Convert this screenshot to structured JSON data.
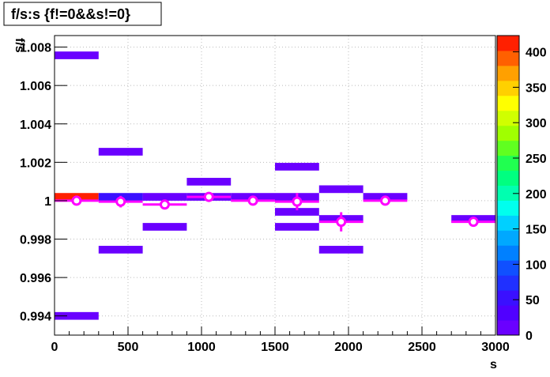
{
  "chart_data": {
    "type": "colz",
    "title": "f/s:s {f!=0&&s!=0}",
    "xlabel": "s",
    "ylabel": "f/s",
    "xlim": [
      0,
      3000
    ],
    "ylim": [
      0.993,
      1.0086
    ],
    "zlim": [
      0,
      423
    ],
    "xticks": [
      0,
      500,
      1000,
      1500,
      2000,
      2500,
      3000
    ],
    "yticks": [
      0.994,
      0.996,
      0.998,
      1,
      1.002,
      1.004,
      1.006,
      1.008
    ],
    "zticks": [
      0,
      50,
      100,
      150,
      200,
      250,
      300,
      350,
      400
    ],
    "grid": true,
    "palette": [
      "#6a00ff",
      "#5000ff",
      "#3a10ff",
      "#2030ff",
      "#1050ff",
      "#0080ff",
      "#00a8ff",
      "#00d0ff",
      "#00ffee",
      "#00ffb0",
      "#00ff80",
      "#20ff50",
      "#60ff20",
      "#a0ff00",
      "#d0ff00",
      "#ffff00",
      "#ffd000",
      "#ffa000",
      "#ff6000",
      "#ff2000"
    ],
    "cells": [
      {
        "x": [
          0,
          300
        ],
        "y": [
          1.00737,
          1.00777
        ],
        "z": 2
      },
      {
        "x": [
          0,
          300
        ],
        "y": [
          1.0,
          1.0004
        ],
        "z": 420
      },
      {
        "x": [
          0,
          300
        ],
        "y": [
          0.9938,
          0.9942
        ],
        "z": 1
      },
      {
        "x": [
          300,
          600
        ],
        "y": [
          1.00235,
          1.00275
        ],
        "z": 2
      },
      {
        "x": [
          300,
          600
        ],
        "y": [
          1.0,
          1.0004
        ],
        "z": 60
      },
      {
        "x": [
          300,
          600
        ],
        "y": [
          0.99725,
          0.99765
        ],
        "z": 2
      },
      {
        "x": [
          600,
          900
        ],
        "y": [
          1.0,
          1.0004
        ],
        "z": 8
      },
      {
        "x": [
          600,
          900
        ],
        "y": [
          0.99844,
          0.99884
        ],
        "z": 2
      },
      {
        "x": [
          900,
          1200
        ],
        "y": [
          1.00079,
          1.00119
        ],
        "z": 2
      },
      {
        "x": [
          900,
          1200
        ],
        "y": [
          1.0,
          1.0004
        ],
        "z": 10
      },
      {
        "x": [
          1200,
          1500
        ],
        "y": [
          1.0,
          1.0004
        ],
        "z": 10
      },
      {
        "x": [
          1500,
          1800
        ],
        "y": [
          1.00157,
          1.00197
        ],
        "z": 2
      },
      {
        "x": [
          1500,
          1800
        ],
        "y": [
          1.0,
          1.0004
        ],
        "z": 12
      },
      {
        "x": [
          1500,
          1800
        ],
        "y": [
          0.99922,
          0.99962
        ],
        "z": 2
      },
      {
        "x": [
          1500,
          1800
        ],
        "y": [
          0.99844,
          0.99884
        ],
        "z": 2
      },
      {
        "x": [
          1800,
          2100
        ],
        "y": [
          1.0004,
          1.0008
        ],
        "z": 2
      },
      {
        "x": [
          1800,
          2100
        ],
        "y": [
          0.99885,
          0.99925
        ],
        "z": 2
      },
      {
        "x": [
          1800,
          2100
        ],
        "y": [
          0.99725,
          0.99765
        ],
        "z": 2
      },
      {
        "x": [
          2100,
          2400
        ],
        "y": [
          1.0,
          1.0004
        ],
        "z": 6
      },
      {
        "x": [
          2700,
          3000
        ],
        "y": [
          0.99885,
          0.99925
        ],
        "z": 4
      }
    ],
    "profile": {
      "color": "#ff00ff",
      "x": [
        150,
        450,
        750,
        1050,
        1350,
        1650,
        1950,
        2250,
        2850
      ],
      "y": [
        1.0,
        0.99995,
        0.9998,
        1.0002,
        1.0,
        0.99995,
        0.9989,
        1.0,
        0.9989
      ],
      "yerr": [
        0.00025,
        0.0003,
        0.0002,
        0.0001,
        0,
        0.00045,
        0.0005,
        0,
        0
      ],
      "xerr": [
        150,
        150,
        150,
        150,
        150,
        150,
        150,
        150,
        150
      ]
    }
  }
}
